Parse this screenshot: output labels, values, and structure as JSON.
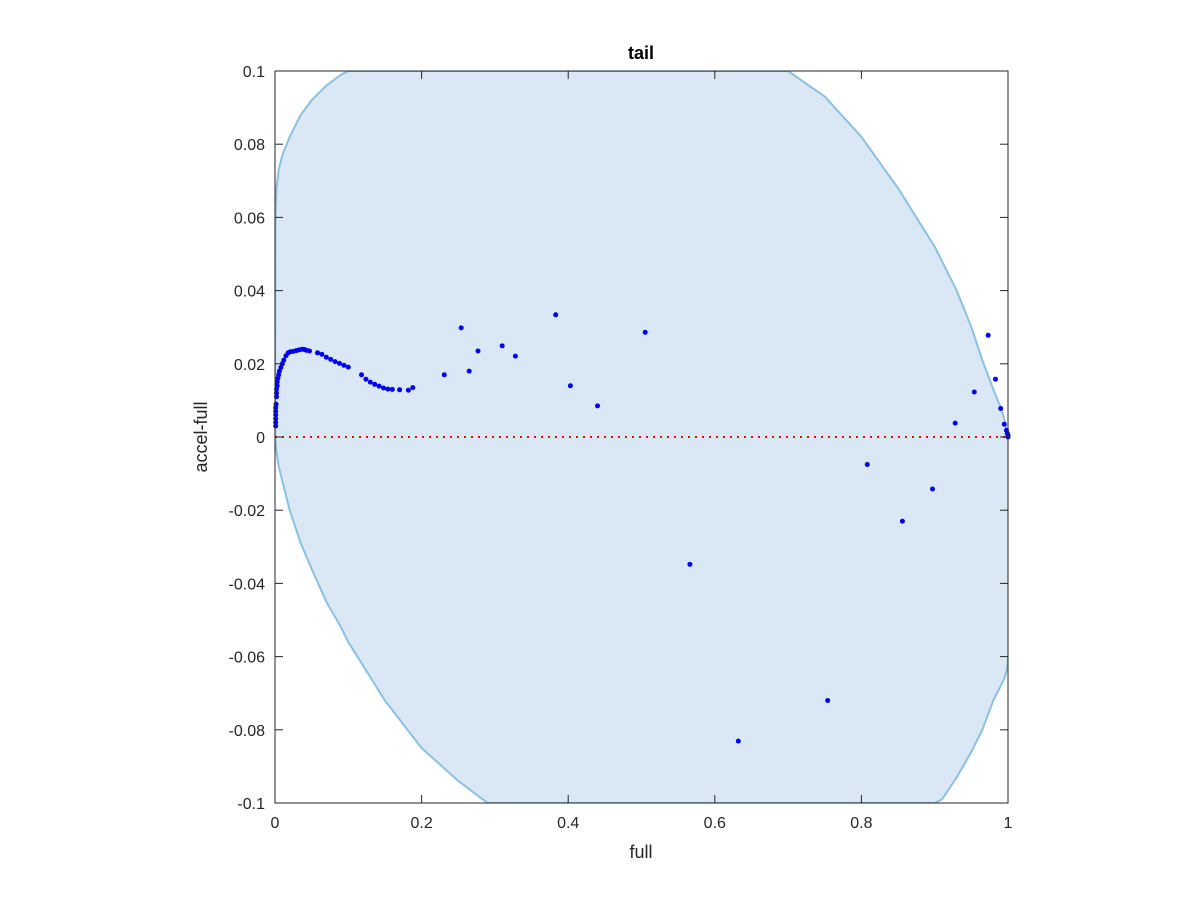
{
  "chart_data": {
    "type": "scatter",
    "title": "tail",
    "xlabel": "full",
    "ylabel": "accel-full",
    "xlim": [
      0,
      1
    ],
    "ylim": [
      -0.1,
      0.1
    ],
    "xticks": [
      "0",
      "0.2",
      "0.4",
      "0.6",
      "0.8",
      "1"
    ],
    "xtick_values": [
      0,
      0.2,
      0.4,
      0.6,
      0.8,
      1
    ],
    "yticks": [
      "-0.1",
      "-0.08",
      "-0.06",
      "-0.04",
      "-0.02",
      "0",
      "0.02",
      "0.04",
      "0.06",
      "0.08",
      "0.1"
    ],
    "ytick_values": [
      -0.1,
      -0.08,
      -0.06,
      -0.04,
      -0.02,
      0,
      0.02,
      0.04,
      0.06,
      0.08,
      0.1
    ],
    "grid": false,
    "colors": {
      "points": "#0000ee",
      "region_fill": "#d9e8f4",
      "region_edge": "#8dc0e0",
      "zero_line": "#ff0000",
      "axes": "#262626"
    },
    "envelope": {
      "x": [
        0,
        0.0005,
        0.002,
        0.005,
        0.01,
        0.02,
        0.035,
        0.05,
        0.07,
        0.09,
        0.1,
        0.15,
        0.2,
        0.25,
        0.29,
        0.3,
        0.4,
        0.5,
        0.6,
        0.7,
        0.75,
        0.8,
        0.85,
        0.9,
        0.91,
        0.93,
        0.95,
        0.965,
        0.98,
        0.99,
        0.995,
        0.998,
        0.9995,
        1
      ],
      "upper": [
        0,
        0.06,
        0.068,
        0.073,
        0.077,
        0.082,
        0.088,
        0.092,
        0.096,
        0.099,
        0.1,
        0.1,
        0.1,
        0.1,
        0.1,
        0.1,
        0.1,
        0.1,
        0.1,
        0.1,
        0.093,
        0.082,
        0.068,
        0.052,
        0.048,
        0.04,
        0.03,
        0.021,
        0.013,
        0.008,
        0.005,
        0.002,
        0.001,
        0
      ],
      "lower": [
        0,
        -0.001,
        -0.004,
        -0.008,
        -0.012,
        -0.02,
        -0.029,
        -0.036,
        -0.045,
        -0.052,
        -0.056,
        -0.072,
        -0.085,
        -0.094,
        -0.1,
        -0.1,
        -0.1,
        -0.1,
        -0.1,
        -0.1,
        -0.1,
        -0.1,
        -0.1,
        -0.1,
        -0.099,
        -0.093,
        -0.086,
        -0.08,
        -0.072,
        -0.068,
        -0.066,
        -0.064,
        -0.062,
        -0.06
      ]
    },
    "zero_line": 0,
    "series": [
      {
        "x": [
          0.001,
          0.001,
          0.001,
          0.001,
          0.001,
          0.001,
          0.0015,
          0.002,
          0.002,
          0.002,
          0.003,
          0.003,
          0.004,
          0.005,
          0.006,
          0.008,
          0.01,
          0.012,
          0.015,
          0.018,
          0.021,
          0.025,
          0.029,
          0.033,
          0.037,
          0.04,
          0.043,
          0.047,
          0.058,
          0.064,
          0.07,
          0.076,
          0.082,
          0.088,
          0.094,
          0.1,
          0.118,
          0.124,
          0.13,
          0.136,
          0.142,
          0.148,
          0.154,
          0.16,
          0.17,
          0.182,
          0.188,
          0.231,
          0.254,
          0.265,
          0.277,
          0.31,
          0.328,
          0.383,
          0.403,
          0.44,
          0.505,
          0.566,
          0.632,
          0.754,
          0.808,
          0.856,
          0.897,
          0.928,
          0.954,
          0.973,
          0.983,
          0.99,
          0.995,
          0.998,
          0.999,
          1,
          1,
          1
        ],
        "y": [
          0.003,
          0.004,
          0.005,
          0.006,
          0.007,
          0.008,
          0.009,
          0.011,
          0.012,
          0.013,
          0.014,
          0.015,
          0.016,
          0.017,
          0.018,
          0.019,
          0.02,
          0.021,
          0.0222,
          0.023,
          0.0233,
          0.0234,
          0.0236,
          0.0238,
          0.024,
          0.0239,
          0.0237,
          0.0235,
          0.023,
          0.0226,
          0.0218,
          0.0212,
          0.0206,
          0.0201,
          0.0196,
          0.0191,
          0.017,
          0.0158,
          0.015,
          0.0144,
          0.0139,
          0.0134,
          0.0131,
          0.013,
          0.0129,
          0.0128,
          0.0135,
          0.017,
          0.0298,
          0.018,
          0.0235,
          0.0249,
          0.0221,
          0.0334,
          0.014,
          0.0085,
          0.0286,
          -0.0348,
          -0.0831,
          -0.072,
          -0.0075,
          -0.023,
          -0.0142,
          0.0038,
          0.0123,
          0.0278,
          0.0158,
          0.0078,
          0.0035,
          0.0018,
          0.001,
          0.0005,
          0.0002,
          0
        ]
      }
    ]
  }
}
